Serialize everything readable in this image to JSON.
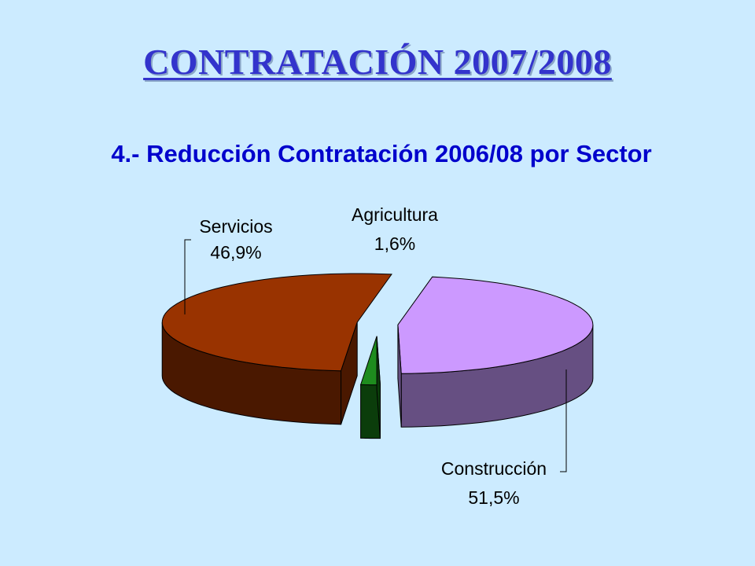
{
  "slide": {
    "title": "CONTRATACIÓN 2007/2008"
  },
  "colors": {
    "background": "#CCEBFF",
    "title": "#3333CC",
    "chart_title": "#0000CC"
  },
  "chart_data": {
    "type": "pie",
    "title": "4.- Reducción Contratación 2006/08 por Sector",
    "three_d": true,
    "exploded": true,
    "legend": "none",
    "slices": [
      {
        "label": "Servicios",
        "value": 46.9,
        "value_label": "46,9%",
        "color_top": "#CC99FF",
        "color_side": "#664F82"
      },
      {
        "label": "Agricultura",
        "value": 1.6,
        "value_label": "1,6%",
        "color_top": "#1E8C1E",
        "color_side": "#0B3D0B"
      },
      {
        "label": "Construcción",
        "value": 51.5,
        "value_label": "51,5%",
        "color_top": "#993300",
        "color_side": "#4A1800"
      }
    ]
  }
}
